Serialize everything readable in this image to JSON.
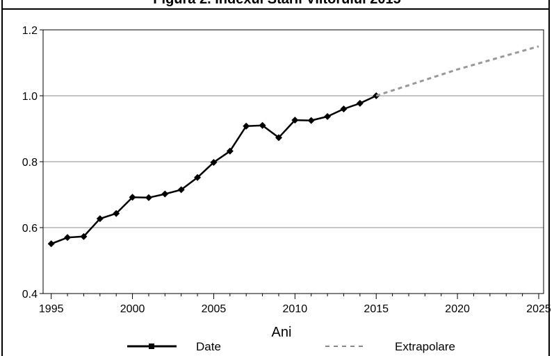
{
  "chart_data": {
    "type": "line",
    "title": "Figura 2. Indexul Stării Viitorului 2015",
    "xlabel": "Ani",
    "ylabel": "",
    "xlim": [
      1994.5,
      2025.3
    ],
    "ylim": [
      0.4,
      1.2
    ],
    "x_ticks": [
      "1995",
      "2000",
      "2005",
      "2010",
      "2015",
      "2020",
      "2025"
    ],
    "y_ticks": [
      "0.4",
      "0.6",
      "0.8",
      "1.0",
      "1.2"
    ],
    "grid": "horizontal",
    "legend_position": "bottom",
    "series": [
      {
        "name": "Date",
        "style": "solid",
        "marker": "diamond",
        "color": "#000000",
        "x": [
          1995,
          1996,
          1997,
          1998,
          1999,
          2000,
          2001,
          2002,
          2003,
          2004,
          2005,
          2006,
          2007,
          2008,
          2009,
          2010,
          2011,
          2012,
          2013,
          2014,
          2015
        ],
        "y": [
          0.551,
          0.57,
          0.573,
          0.627,
          0.643,
          0.692,
          0.691,
          0.702,
          0.715,
          0.752,
          0.798,
          0.832,
          0.908,
          0.91,
          0.873,
          0.926,
          0.925,
          0.937,
          0.96,
          0.977,
          1.0
        ]
      },
      {
        "name": "Extrapolare",
        "style": "dashed",
        "color": "#999999",
        "x": [
          2015,
          2020,
          2025
        ],
        "y": [
          1.0,
          1.08,
          1.15
        ]
      }
    ]
  }
}
